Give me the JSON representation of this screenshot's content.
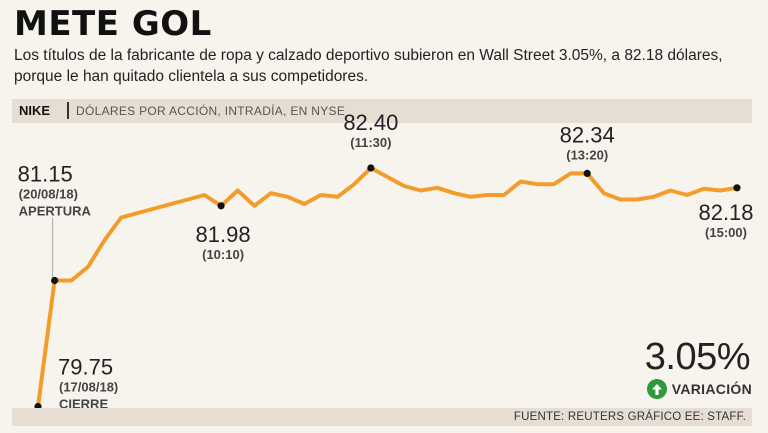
{
  "header": {
    "title": "METE GOL",
    "subtitle": "Los títulos de la fabricante de ropa y calzado deportivo subieron en Wall Street 3.05%, a 82.18 dólares, porque le han quitado clientela a sus competidores."
  },
  "band": {
    "ticker": "NIKE",
    "units": "DÓLARES POR ACCIÓN, INTRADÍA, EN NYSE"
  },
  "chart_data": {
    "type": "line",
    "title": "NIKE",
    "ylabel": "Dólares por acción",
    "xlabel": "",
    "ylim": [
      79.6,
      82.6
    ],
    "line_color": "#f39c2b",
    "values": [
      79.75,
      81.15,
      81.15,
      81.3,
      81.6,
      81.85,
      81.9,
      81.95,
      82.0,
      82.05,
      82.1,
      81.98,
      82.15,
      81.98,
      82.12,
      82.08,
      82.0,
      82.1,
      82.08,
      82.22,
      82.4,
      82.3,
      82.2,
      82.15,
      82.18,
      82.12,
      82.08,
      82.1,
      82.1,
      82.25,
      82.22,
      82.22,
      82.34,
      82.34,
      82.12,
      82.05,
      82.05,
      82.08,
      82.15,
      82.1,
      82.17,
      82.15,
      82.18
    ],
    "annotations": [
      {
        "index": 0,
        "value": "79.75",
        "line2": "(17/08/18)",
        "line3": "CIERRE"
      },
      {
        "index": 1,
        "value": "81.15",
        "line2": "(20/08/18)",
        "line3": "APERTURA"
      },
      {
        "index": 11,
        "value": "81.98",
        "line2": "(10:10)"
      },
      {
        "index": 20,
        "value": "82.40",
        "line2": "(11:30)"
      },
      {
        "index": 33,
        "value": "82.34",
        "line2": "(13:20)"
      },
      {
        "index": 42,
        "value": "82.18",
        "line2": "(15:00)"
      }
    ]
  },
  "summary": {
    "change_pct": "3.05%",
    "change_label": "VARIACIÓN",
    "direction": "up"
  },
  "footer": {
    "source": "FUENTE: REUTERS GRÁFICO EE: STAFF."
  }
}
